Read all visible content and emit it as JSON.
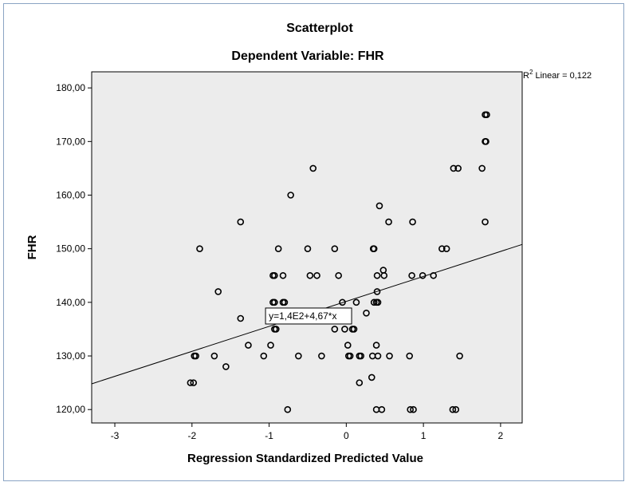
{
  "chart_data": {
    "type": "scatter",
    "title": "Scatterplot",
    "subtitle": "Dependent Variable: FHR",
    "xlabel": "Regression Standardized Predicted Value",
    "ylabel": "FHR",
    "xlim": [
      -3.3,
      2.28
    ],
    "ylim": [
      117.5,
      183
    ],
    "xticks": [
      -3,
      -2,
      -1,
      0,
      1,
      2
    ],
    "xtick_labels": [
      "-3",
      "-2",
      "-1",
      "0",
      "1",
      "2"
    ],
    "yticks": [
      120,
      130,
      140,
      150,
      160,
      170,
      180
    ],
    "ytick_labels": [
      "120,00",
      "130,00",
      "140,00",
      "150,00",
      "160,00",
      "170,00",
      "180,00"
    ],
    "grid": false,
    "plot_background": "#ececec",
    "r2_label": "R",
    "r2_sup": "2",
    "r2_text": " Linear = 0,122",
    "fit_line": {
      "x": [
        -3.3,
        2.28
      ],
      "y": [
        124.8,
        150.8
      ]
    },
    "equation_label": "y=1,4E2+4,67*x",
    "equation_anchor": {
      "x": -0.53,
      "y": 137.6
    },
    "points": [
      {
        "x": -2.02,
        "y": 125
      },
      {
        "x": -1.98,
        "y": 125
      },
      {
        "x": -1.97,
        "y": 130
      },
      {
        "x": -1.95,
        "y": 130
      },
      {
        "x": -1.9,
        "y": 150
      },
      {
        "x": -1.71,
        "y": 130
      },
      {
        "x": -1.66,
        "y": 142
      },
      {
        "x": -1.56,
        "y": 128
      },
      {
        "x": -1.37,
        "y": 155
      },
      {
        "x": -1.37,
        "y": 137
      },
      {
        "x": -1.27,
        "y": 132
      },
      {
        "x": -1.07,
        "y": 130
      },
      {
        "x": -0.98,
        "y": 132
      },
      {
        "x": -0.95,
        "y": 140
      },
      {
        "x": -0.93,
        "y": 135
      },
      {
        "x": -0.95,
        "y": 145
      },
      {
        "x": -0.93,
        "y": 145
      },
      {
        "x": -0.93,
        "y": 140
      },
      {
        "x": -0.91,
        "y": 135
      },
      {
        "x": -0.88,
        "y": 150
      },
      {
        "x": -0.82,
        "y": 145
      },
      {
        "x": -0.82,
        "y": 140
      },
      {
        "x": -0.8,
        "y": 140
      },
      {
        "x": -0.76,
        "y": 120
      },
      {
        "x": -0.72,
        "y": 160
      },
      {
        "x": -0.62,
        "y": 130
      },
      {
        "x": -0.5,
        "y": 150
      },
      {
        "x": -0.47,
        "y": 145
      },
      {
        "x": -0.43,
        "y": 165
      },
      {
        "x": -0.38,
        "y": 145
      },
      {
        "x": -0.32,
        "y": 130
      },
      {
        "x": -0.15,
        "y": 150
      },
      {
        "x": -0.15,
        "y": 135
      },
      {
        "x": -0.1,
        "y": 145
      },
      {
        "x": -0.05,
        "y": 140
      },
      {
        "x": -0.02,
        "y": 135
      },
      {
        "x": 0.02,
        "y": 132
      },
      {
        "x": 0.03,
        "y": 130
      },
      {
        "x": 0.05,
        "y": 130
      },
      {
        "x": 0.08,
        "y": 135
      },
      {
        "x": 0.1,
        "y": 135
      },
      {
        "x": 0.13,
        "y": 140
      },
      {
        "x": 0.17,
        "y": 130
      },
      {
        "x": 0.17,
        "y": 125
      },
      {
        "x": 0.19,
        "y": 130
      },
      {
        "x": 0.26,
        "y": 138
      },
      {
        "x": 0.33,
        "y": 126
      },
      {
        "x": 0.34,
        "y": 130
      },
      {
        "x": 0.35,
        "y": 150
      },
      {
        "x": 0.36,
        "y": 150
      },
      {
        "x": 0.36,
        "y": 140
      },
      {
        "x": 0.39,
        "y": 140
      },
      {
        "x": 0.4,
        "y": 142
      },
      {
        "x": 0.4,
        "y": 145
      },
      {
        "x": 0.41,
        "y": 140
      },
      {
        "x": 0.39,
        "y": 132
      },
      {
        "x": 0.41,
        "y": 130
      },
      {
        "x": 0.39,
        "y": 120
      },
      {
        "x": 0.43,
        "y": 158
      },
      {
        "x": 0.46,
        "y": 120
      },
      {
        "x": 0.48,
        "y": 146
      },
      {
        "x": 0.49,
        "y": 145
      },
      {
        "x": 0.55,
        "y": 155
      },
      {
        "x": 0.56,
        "y": 130
      },
      {
        "x": 0.82,
        "y": 130
      },
      {
        "x": 0.83,
        "y": 120
      },
      {
        "x": 0.87,
        "y": 120
      },
      {
        "x": 0.86,
        "y": 155
      },
      {
        "x": 0.85,
        "y": 145
      },
      {
        "x": 0.99,
        "y": 145
      },
      {
        "x": 1.13,
        "y": 145
      },
      {
        "x": 1.24,
        "y": 150
      },
      {
        "x": 1.3,
        "y": 150
      },
      {
        "x": 1.38,
        "y": 120
      },
      {
        "x": 1.42,
        "y": 120
      },
      {
        "x": 1.39,
        "y": 165
      },
      {
        "x": 1.45,
        "y": 165
      },
      {
        "x": 1.47,
        "y": 130
      },
      {
        "x": 1.76,
        "y": 165
      },
      {
        "x": 1.8,
        "y": 155
      },
      {
        "x": 1.8,
        "y": 170
      },
      {
        "x": 1.81,
        "y": 170
      },
      {
        "x": 1.8,
        "y": 175
      },
      {
        "x": 1.82,
        "y": 175
      }
    ]
  }
}
